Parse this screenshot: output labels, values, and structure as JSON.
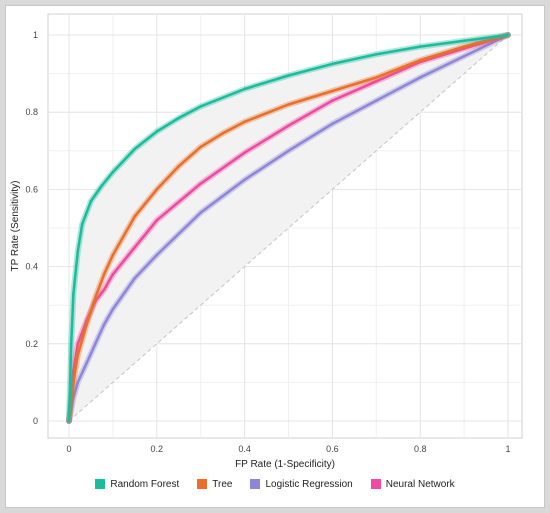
{
  "chart_data": {
    "type": "line",
    "xlabel": "FP Rate (1-Specificity)",
    "ylabel": "TP Rate (Sensitivity)",
    "xlim": [
      0,
      1
    ],
    "ylim": [
      0,
      1
    ],
    "x_ticks": [
      "0",
      "0.2",
      "0.4",
      "0.6",
      "0.8",
      "1"
    ],
    "y_ticks": [
      "0",
      "0.2",
      "0.4",
      "0.6",
      "0.8",
      "1"
    ],
    "grid": true,
    "legend_position": "bottom",
    "diagonal_reference": true,
    "series": [
      {
        "name": "Random Forest",
        "color": "#1abc9c",
        "x": [
          0,
          0.005,
          0.01,
          0.02,
          0.03,
          0.05,
          0.075,
          0.1,
          0.15,
          0.2,
          0.25,
          0.3,
          0.4,
          0.5,
          0.6,
          0.7,
          0.8,
          0.9,
          1.0
        ],
        "y": [
          0,
          0.2,
          0.33,
          0.44,
          0.51,
          0.57,
          0.61,
          0.645,
          0.705,
          0.75,
          0.785,
          0.815,
          0.86,
          0.895,
          0.925,
          0.95,
          0.97,
          0.985,
          1.0
        ]
      },
      {
        "name": "Tree",
        "color": "#e8702a",
        "x": [
          0,
          0.01,
          0.02,
          0.04,
          0.06,
          0.08,
          0.1,
          0.15,
          0.2,
          0.25,
          0.3,
          0.35,
          0.4,
          0.5,
          0.6,
          0.7,
          0.8,
          0.9,
          1.0
        ],
        "y": [
          0,
          0.1,
          0.17,
          0.25,
          0.32,
          0.38,
          0.43,
          0.53,
          0.6,
          0.66,
          0.71,
          0.745,
          0.775,
          0.82,
          0.855,
          0.89,
          0.935,
          0.97,
          1.0
        ]
      },
      {
        "name": "Logistic Regression",
        "color": "#8e86d8",
        "x": [
          0,
          0.01,
          0.02,
          0.04,
          0.06,
          0.08,
          0.1,
          0.15,
          0.2,
          0.3,
          0.4,
          0.5,
          0.6,
          0.7,
          0.8,
          0.9,
          1.0
        ],
        "y": [
          0,
          0.06,
          0.1,
          0.15,
          0.2,
          0.25,
          0.29,
          0.37,
          0.43,
          0.54,
          0.625,
          0.7,
          0.77,
          0.83,
          0.89,
          0.945,
          1.0
        ]
      },
      {
        "name": "Neural Network",
        "color": "#ee4aa0",
        "x": [
          0,
          0.005,
          0.01,
          0.02,
          0.04,
          0.06,
          0.08,
          0.1,
          0.15,
          0.2,
          0.3,
          0.4,
          0.5,
          0.6,
          0.7,
          0.8,
          0.9,
          1.0
        ],
        "y": [
          0,
          0.07,
          0.13,
          0.2,
          0.26,
          0.31,
          0.34,
          0.38,
          0.45,
          0.52,
          0.615,
          0.695,
          0.765,
          0.83,
          0.88,
          0.93,
          0.965,
          1.0
        ]
      }
    ]
  }
}
